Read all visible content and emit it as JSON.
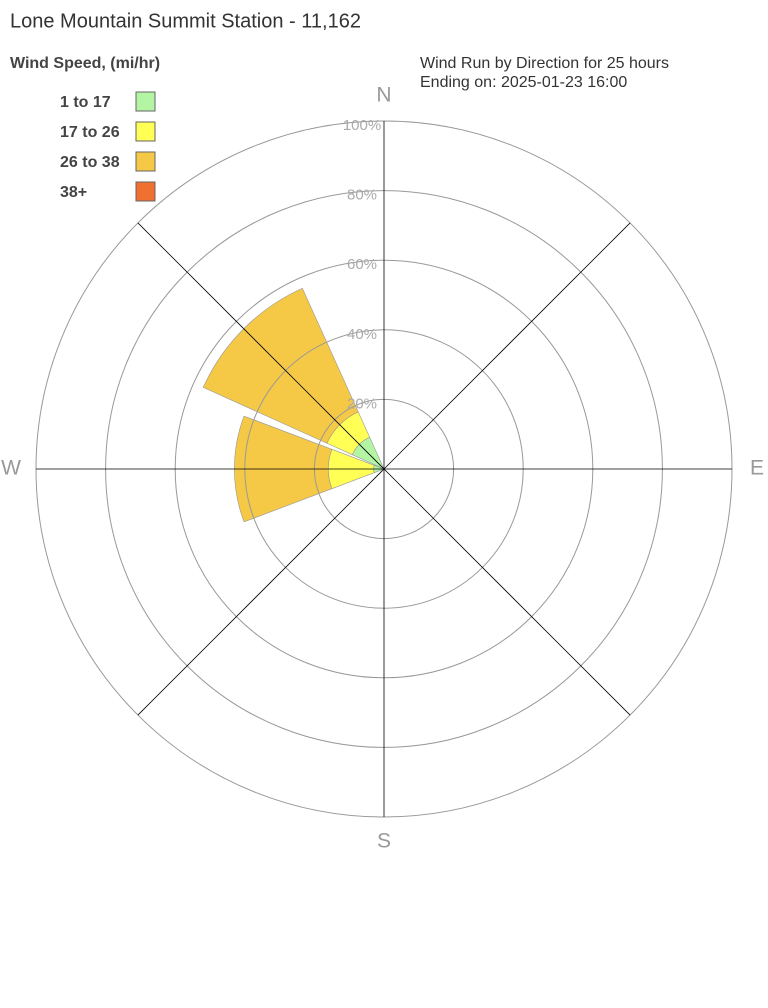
{
  "chart_data": {
    "type": "windrose",
    "title": "Lone Mountain Summit Station - 11,162",
    "subtitle": [
      "Wind Run by Direction for 25 hours",
      "Ending on: 2025-01-23 16:00"
    ],
    "legend_title": "Wind Speed, (mi/hr)",
    "categories": [
      "N",
      null,
      "E",
      null,
      "S",
      null,
      "W",
      null
    ],
    "series": [
      {
        "name": "1 to 17",
        "color": "#b3f5a3",
        "values": [
          0,
          0,
          0,
          0,
          0,
          0,
          3,
          10
        ]
      },
      {
        "name": "17 to 26",
        "color": "#ffff55",
        "values": [
          0,
          0,
          0,
          0,
          0,
          0,
          13,
          8
        ]
      },
      {
        "name": "26 to 38",
        "color": "#f5c945",
        "values": [
          0,
          0,
          0,
          0,
          0,
          0,
          27,
          39
        ]
      },
      {
        "name": "38+",
        "color": "#f07030",
        "values": [
          0,
          0,
          0,
          0,
          0,
          0,
          0,
          0
        ]
      }
    ],
    "rlim": [
      0,
      100
    ],
    "rticks": [
      {
        "value": 20,
        "label": "20%"
      },
      {
        "value": 40,
        "label": "40%"
      },
      {
        "value": 60,
        "label": "60%"
      },
      {
        "value": 80,
        "label": "80%"
      },
      {
        "value": 100,
        "label": "100%"
      }
    ]
  }
}
